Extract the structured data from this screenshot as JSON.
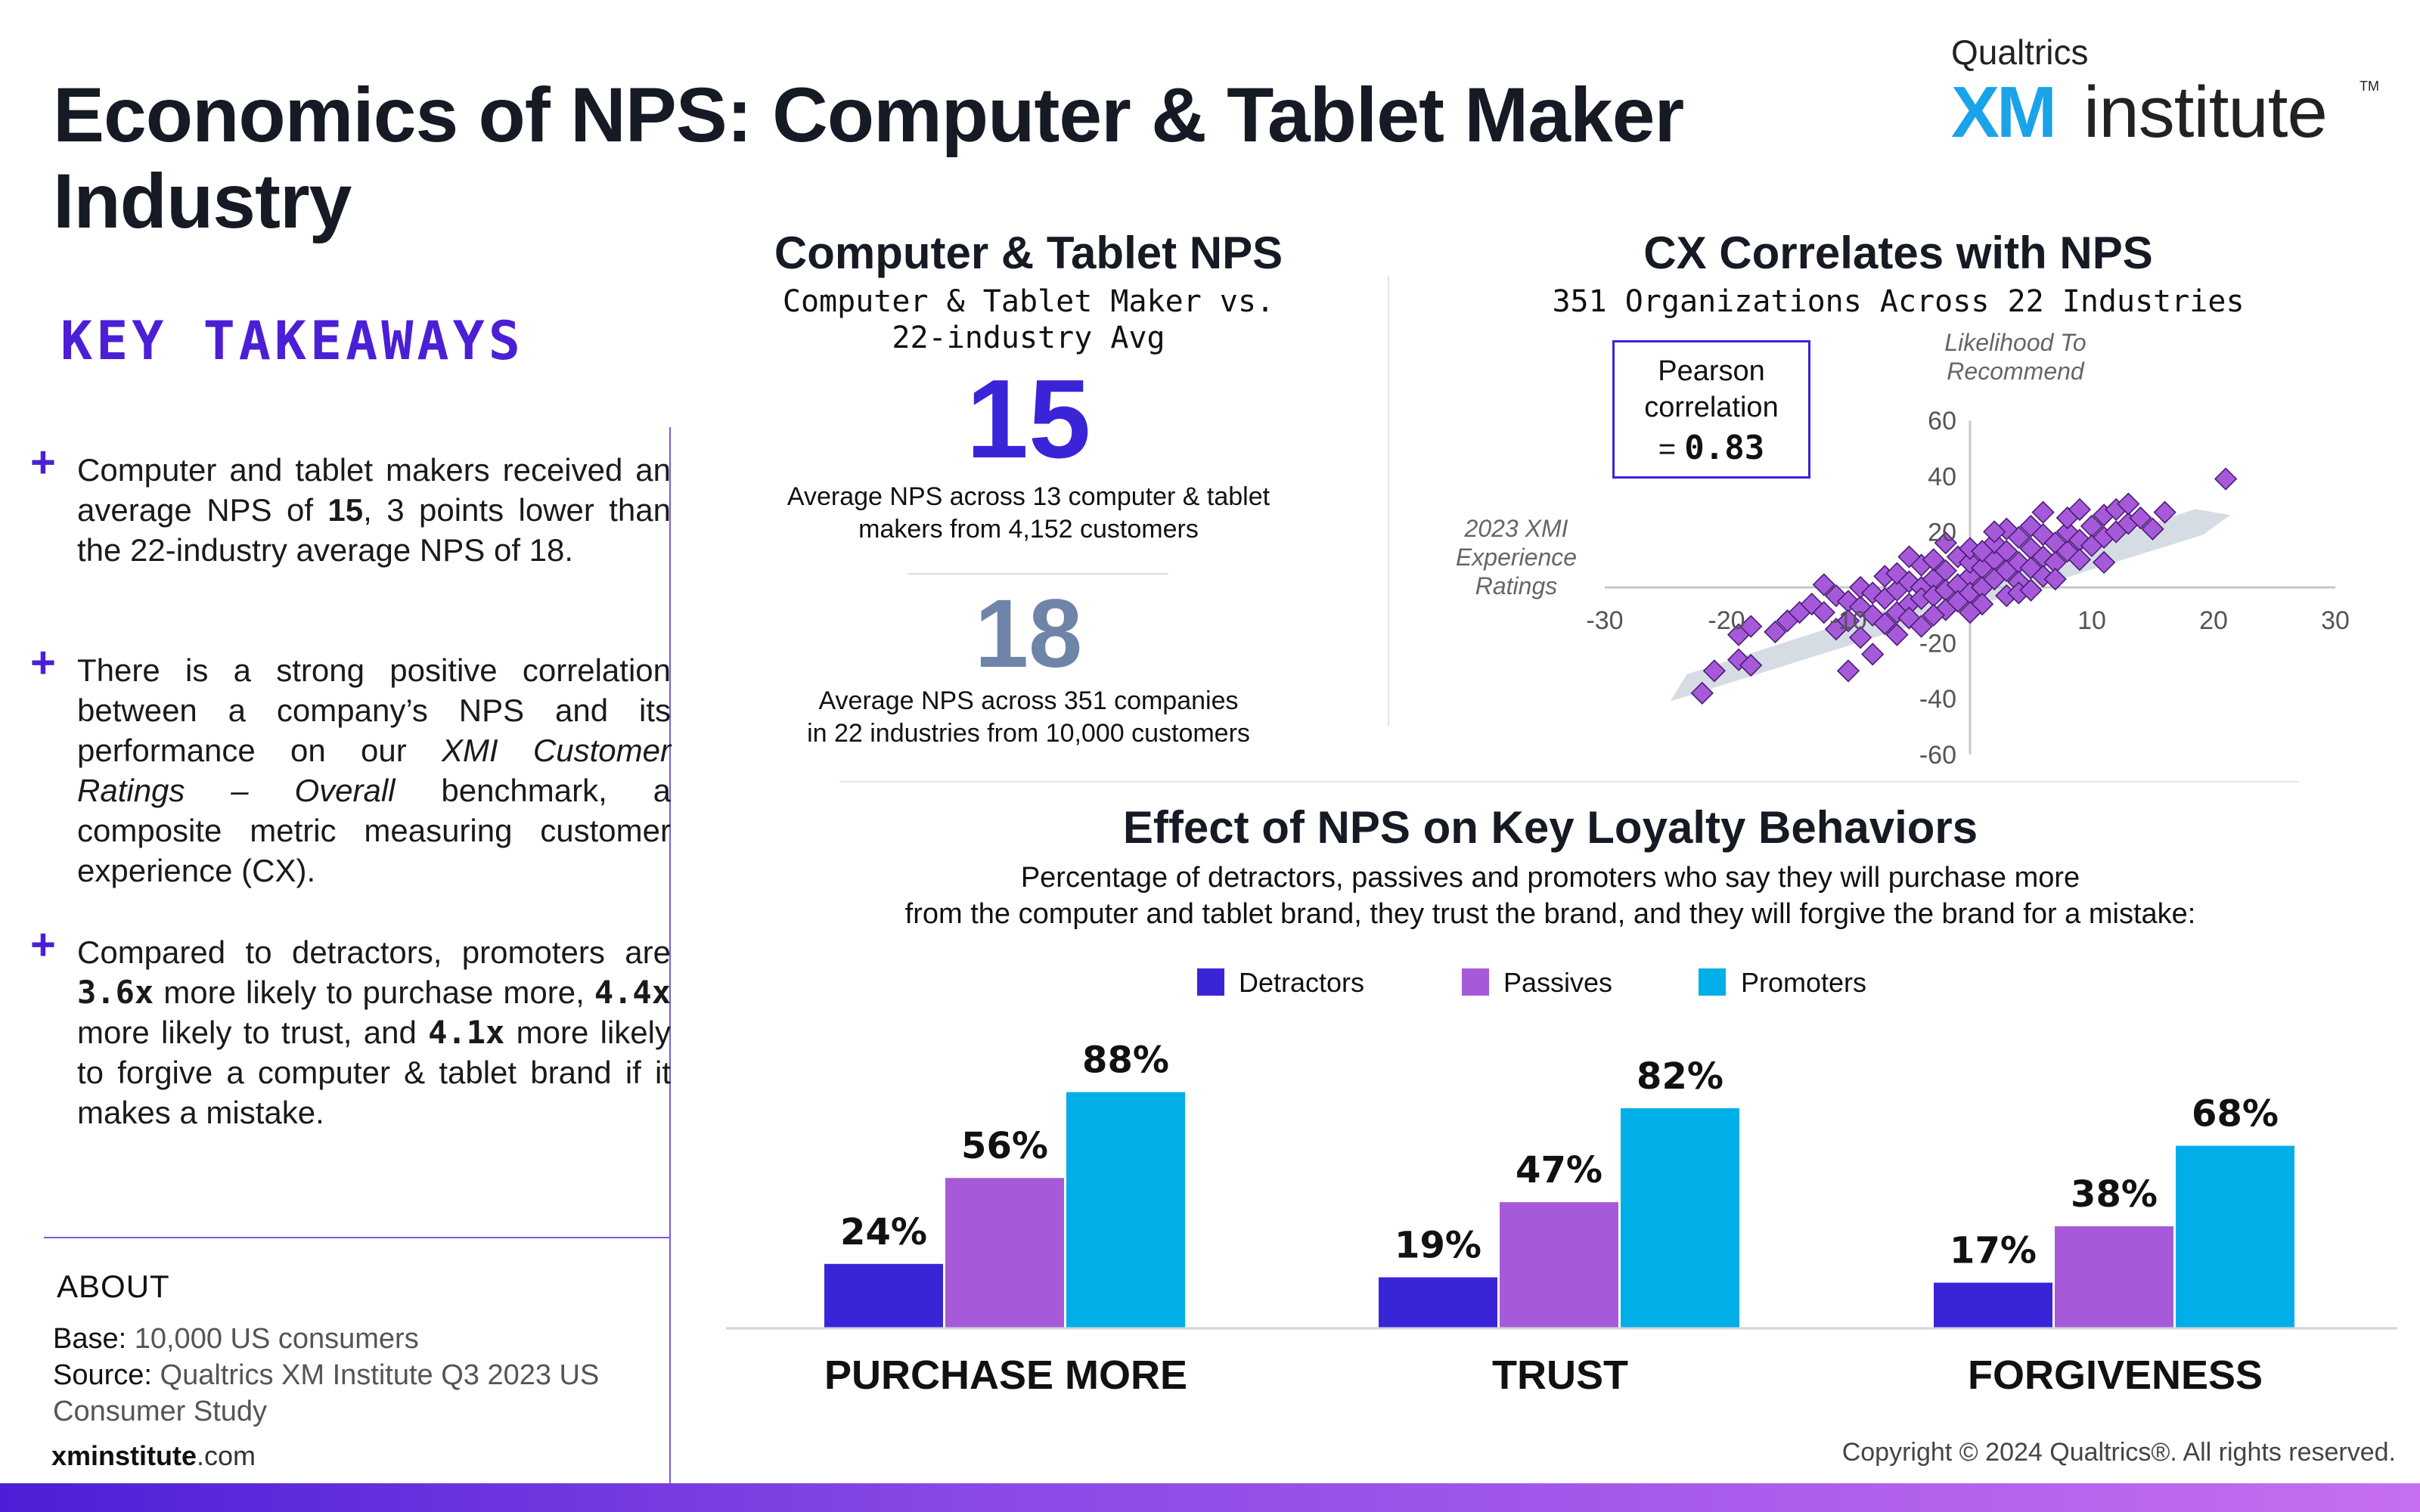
{
  "title": "Economics of NPS: Computer & Tablet Maker Industry",
  "logo": {
    "company": "Qualtrics",
    "xm": "XM",
    "institute": "institute",
    "tm": "TM"
  },
  "key_takeaways": {
    "heading": "KEY TAKEAWAYS",
    "items": [
      {
        "plus": "+",
        "parts": [
          "Computer and tablet makers received an average NPS of ",
          "15",
          ", 3 points lower than the 22-industry average NPS of 18."
        ]
      },
      {
        "plus": "+",
        "parts": [
          " There is a strong positive correlation between a company’s NPS and its performance on our ",
          "XMI Customer Ratings – Overall",
          " benchmark, a composite metric measuring customer experience (CX)."
        ]
      },
      {
        "plus": "+",
        "parts": [
          "Compared to detractors, promoters are ",
          "3.6x",
          " more likely to purchase more, ",
          "4.4x",
          " more likely to trust, and ",
          "4.1x",
          " more likely to forgive a computer & tablet brand if it makes a mistake."
        ]
      }
    ]
  },
  "about": {
    "heading": "ABOUT",
    "base_label": "Base:",
    "base_value": " 10,000 US consumers",
    "source_label": "Source:",
    "source_value": " Qualtrics XM Institute Q3 2023 US",
    "source_value2": "Consumer Study",
    "site_bold": "xminstitute",
    "site_rest": ".com"
  },
  "nps_panel": {
    "title": "Computer & Tablet NPS",
    "subtitle1": "Computer & Tablet Maker vs.",
    "subtitle2": "22-industry Avg",
    "value_industry": "15",
    "desc_industry1": "Average NPS across 13 computer & tablet",
    "desc_industry2": "makers from 4,152 customers",
    "value_avg": "18",
    "desc_avg1": "Average NPS across 351 companies",
    "desc_avg2": "in 22 industries from 10,000 customers"
  },
  "cx_panel": {
    "title": "CX Correlates with NPS",
    "subtitle": "351 Organizations Across 22 Industries",
    "pearson_l1": "Pearson",
    "pearson_l2": "correlation",
    "pearson_eq": "=",
    "pearson_value": "0.83",
    "ylabel1": "Likelihood To",
    "ylabel2": "Recommend",
    "xlabel1": "2023 XMI",
    "xlabel2": "Experience",
    "xlabel3": "Ratings"
  },
  "loyalty_panel": {
    "title": "Effect of NPS on Key Loyalty Behaviors",
    "subtitle1": "Percentage of detractors, passives and promoters who say they will purchase more",
    "subtitle2": "from the computer and tablet brand, they trust the brand, and they will forgive the brand for a mistake:",
    "legend": [
      {
        "label": "Detractors",
        "color": "#3a24d8"
      },
      {
        "label": "Passives",
        "color": "#a65ad9"
      },
      {
        "label": "Promoters",
        "color": "#00aee8"
      }
    ]
  },
  "copyright": "Copyright © 2024 Qualtrics®. All rights reserved.",
  "chart_data": [
    {
      "type": "scatter",
      "title": "CX Correlates with NPS",
      "subtitle": "351 Organizations Across 22 Industries",
      "xlabel": "2023 XMI Experience Ratings",
      "ylabel": "Likelihood To Recommend",
      "xlim": [
        -30,
        30
      ],
      "ylim": [
        -60,
        60
      ],
      "xticks": [
        "-30",
        "-20",
        "-10",
        "10",
        "20",
        "30"
      ],
      "yticks": [
        "60",
        "40",
        "20",
        "-20",
        "-40",
        "-60"
      ],
      "trend": {
        "x": [
          -24,
          21
        ],
        "y": [
          -35,
          26
        ]
      },
      "points": [
        [
          -22,
          -38
        ],
        [
          -21,
          -30
        ],
        [
          -19,
          -26
        ],
        [
          -18,
          -28
        ],
        [
          -19,
          -17
        ],
        [
          -18,
          -14
        ],
        [
          -16,
          -16
        ],
        [
          -15,
          -12
        ],
        [
          -14,
          -9
        ],
        [
          -13,
          -6
        ],
        [
          -12,
          -9
        ],
        [
          -11,
          -3
        ],
        [
          -11,
          -15
        ],
        [
          -10,
          -5
        ],
        [
          -10,
          -12
        ],
        [
          -10,
          -30
        ],
        [
          -9,
          -7
        ],
        [
          -9,
          0
        ],
        [
          -8,
          -2
        ],
        [
          -8,
          -10
        ],
        [
          -8,
          -24
        ],
        [
          -7,
          -4
        ],
        [
          -7,
          4
        ],
        [
          -7,
          -13
        ],
        [
          -6,
          -1
        ],
        [
          -6,
          -9
        ],
        [
          -6,
          5
        ],
        [
          -5,
          2
        ],
        [
          -5,
          -6
        ],
        [
          -5,
          -11
        ],
        [
          -4,
          8
        ],
        [
          -4,
          0
        ],
        [
          -4,
          -4
        ],
        [
          -4,
          -14
        ],
        [
          -3,
          3
        ],
        [
          -3,
          -3
        ],
        [
          -3,
          10
        ],
        [
          -2,
          6
        ],
        [
          -2,
          -1
        ],
        [
          -2,
          -8
        ],
        [
          -1,
          11
        ],
        [
          -1,
          1
        ],
        [
          -1,
          -5
        ],
        [
          0,
          4
        ],
        [
          0,
          -2
        ],
        [
          0,
          9
        ],
        [
          0,
          14
        ],
        [
          1,
          7
        ],
        [
          1,
          0
        ],
        [
          1,
          -6
        ],
        [
          2,
          10
        ],
        [
          2,
          3
        ],
        [
          2,
          16
        ],
        [
          3,
          13
        ],
        [
          3,
          6
        ],
        [
          3,
          -3
        ],
        [
          4,
          9
        ],
        [
          4,
          18
        ],
        [
          4,
          2
        ],
        [
          5,
          14
        ],
        [
          5,
          7
        ],
        [
          5,
          22
        ],
        [
          6,
          11
        ],
        [
          6,
          19
        ],
        [
          6,
          4
        ],
        [
          7,
          16
        ],
        [
          7,
          9
        ],
        [
          8,
          13
        ],
        [
          8,
          20
        ],
        [
          8,
          25
        ],
        [
          9,
          17
        ],
        [
          9,
          10
        ],
        [
          10,
          22
        ],
        [
          10,
          15
        ],
        [
          11,
          26
        ],
        [
          11,
          18
        ],
        [
          12,
          20
        ],
        [
          12,
          28
        ],
        [
          13,
          23
        ],
        [
          13,
          30
        ],
        [
          14,
          25
        ],
        [
          15,
          21
        ],
        [
          16,
          27
        ],
        [
          21,
          39
        ],
        [
          -6,
          -17
        ],
        [
          -2,
          16
        ],
        [
          1,
          13
        ],
        [
          6,
          27
        ],
        [
          -3,
          -10
        ],
        [
          0,
          -9
        ],
        [
          3,
          21
        ],
        [
          7,
          3
        ],
        [
          9,
          28
        ],
        [
          -12,
          1
        ],
        [
          -9,
          -18
        ],
        [
          4,
          -2
        ],
        [
          11,
          9
        ],
        [
          5,
          -1
        ],
        [
          -5,
          11
        ],
        [
          2,
          20
        ]
      ]
    },
    {
      "type": "bar",
      "title": "Effect of NPS on Key Loyalty Behaviors",
      "categories": [
        "PURCHASE MORE",
        "TRUST",
        "FORGIVENESS"
      ],
      "series": [
        {
          "name": "Detractors",
          "values": [
            24,
            19,
            17
          ],
          "labels": [
            "24%",
            "19%",
            "17%"
          ]
        },
        {
          "name": "Passives",
          "values": [
            56,
            47,
            38
          ],
          "labels": [
            "56%",
            "47%",
            "38%"
          ]
        },
        {
          "name": "Promoters",
          "values": [
            88,
            82,
            68
          ],
          "labels": [
            "88%",
            "82%",
            "68%"
          ]
        }
      ],
      "ylim": [
        0,
        100
      ]
    }
  ]
}
